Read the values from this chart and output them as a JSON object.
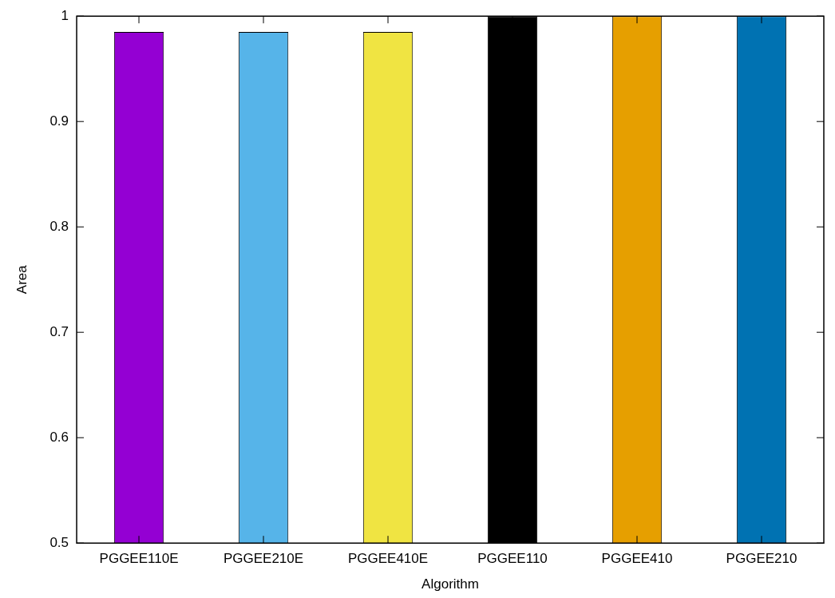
{
  "chart_data": {
    "type": "bar",
    "xlabel": "Algorithm",
    "ylabel": "Area",
    "categories": [
      "PGGEE110E",
      "PGGEE210E",
      "PGGEE410E",
      "PGGEE110",
      "PGGEE410",
      "PGGEE210"
    ],
    "values": [
      0.985,
      0.985,
      0.985,
      1.0,
      1.0,
      1.0
    ],
    "colors": [
      "#9400d3",
      "#56b4e9",
      "#f0e442",
      "#000000",
      "#e69f00",
      "#0072b2"
    ],
    "ylim": [
      0.5,
      1
    ],
    "yticks": [
      0.5,
      0.6,
      0.7,
      0.8,
      0.9,
      1
    ],
    "grid": false,
    "legend": false
  }
}
